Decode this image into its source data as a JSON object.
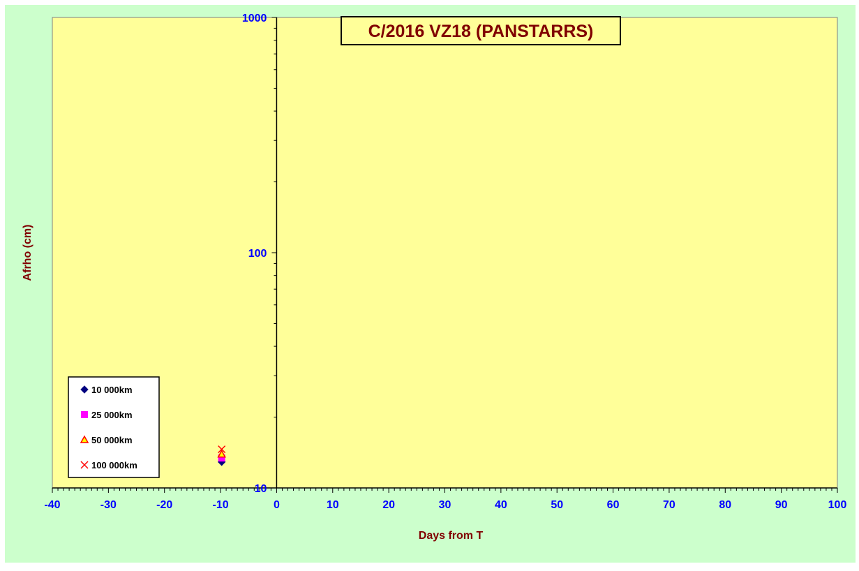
{
  "chart_data": {
    "type": "scatter",
    "title": "C/2016 VZ18 (PANSTARRS)",
    "xlabel": "Days from T",
    "ylabel": "Afrho (cm)",
    "xlim": [
      -40,
      100
    ],
    "ylim": [
      10,
      1000
    ],
    "yscale": "log",
    "x_ticks": [
      -40,
      -30,
      -20,
      -10,
      0,
      10,
      20,
      30,
      40,
      50,
      60,
      70,
      80,
      90,
      100
    ],
    "y_ticks": [
      10,
      100,
      1000
    ],
    "legend_position": "bottom-left",
    "series": [
      {
        "name": "10 000km",
        "marker": "diamond",
        "color": "#000080",
        "points": [
          [
            -9.8,
            12.9
          ]
        ]
      },
      {
        "name": "25 000km",
        "marker": "square",
        "color": "#ff00ff",
        "points": [
          [
            -9.8,
            13.4
          ]
        ]
      },
      {
        "name": "50 000km",
        "marker": "triangle",
        "color": "#ff0000",
        "points": [
          [
            -9.8,
            13.9
          ]
        ]
      },
      {
        "name": "100 000km",
        "marker": "x",
        "color": "#ff0000",
        "points": [
          [
            -9.8,
            14.6
          ]
        ]
      }
    ],
    "colors": {
      "background": "#ccffcc",
      "plot_area": "#ffff99",
      "tick_labels": "#0000ff",
      "axis_titles": "#800000",
      "title_text": "#800000"
    }
  }
}
